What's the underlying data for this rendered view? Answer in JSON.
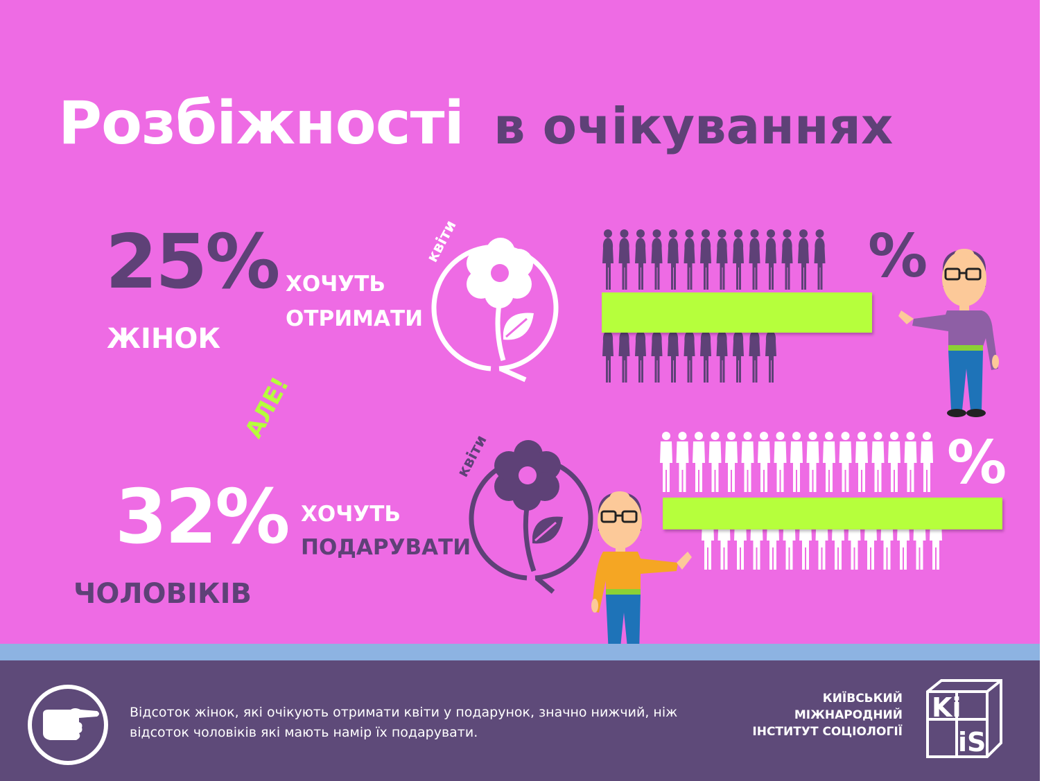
{
  "title": {
    "part1": "Розбіжності",
    "part2": "в очікуваннях"
  },
  "women": {
    "percent": "25%",
    "group": "ЖІНОК",
    "verb_line1": "ХОЧУТЬ",
    "verb_line2": "ОТРИМАТИ",
    "flower_label": "квіти",
    "figure_percent": "%"
  },
  "men": {
    "exclamation": "АЛЕ!",
    "percent": "32%",
    "group": "ЧОЛОВІКІВ",
    "verb_line1": "ХОЧУТЬ",
    "verb_line2": "ПОДАРУВАТИ",
    "flower_label": "квіти",
    "figure_percent": "%"
  },
  "footer": {
    "text": "Відсоток жінок, які очікують отримати  квіти у подарунок,  значно нижчий, ніж відсоток чоловіків які мають намір їх подарувати.",
    "org_line1": "КИЇВСЬКИЙ",
    "org_line2": "МІЖНАРОДНИЙ",
    "org_line3": "ІНСТИТУТ СОЦІОЛОГІЇ",
    "logo_text_top": "Ki",
    "logo_text_bottom": "iS"
  },
  "colors": {
    "background": "#ee6be4",
    "purple": "#5e4177",
    "lime": "#b6ff3c",
    "stripe": "#8db3e2",
    "footer": "#5e4a79"
  },
  "icons": [
    "flower-icon",
    "woman-icon",
    "man-icon",
    "pointing-hand-icon",
    "kiis-logo"
  ]
}
